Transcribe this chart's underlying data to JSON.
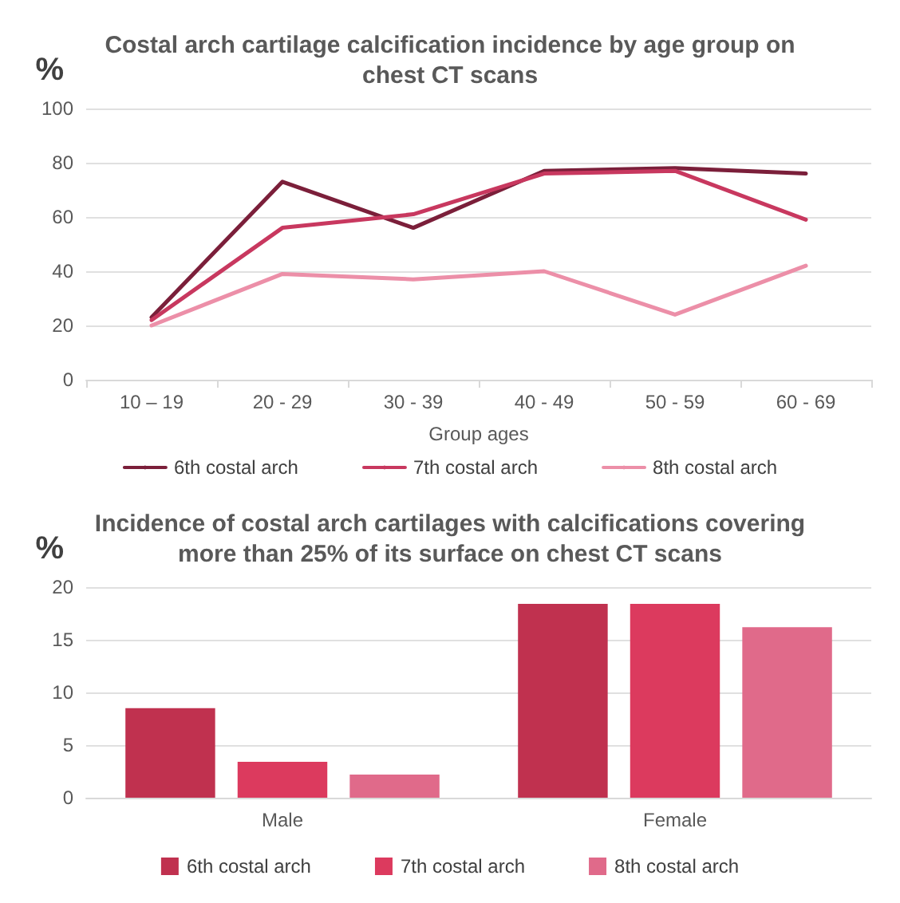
{
  "chart_data": [
    {
      "type": "line",
      "title": "Costal arch cartilage calcification incidence by age group on chest CT scans",
      "xlabel": "Group ages",
      "ylabel": "%",
      "categories": [
        "10 – 19",
        "20 - 29",
        "30 - 39",
        "40 - 49",
        "50 - 59",
        "60 - 69"
      ],
      "series": [
        {
          "name": "6th costal arch",
          "color": "#7b1f3a",
          "values": [
            23,
            73,
            56,
            77,
            78,
            76
          ]
        },
        {
          "name": "7th costal arch",
          "color": "#c8385f",
          "values": [
            22,
            56,
            61,
            76,
            77,
            59
          ]
        },
        {
          "name": "8th costal arch",
          "color": "#ec8fa8",
          "values": [
            20,
            39,
            37,
            40,
            24,
            42
          ]
        }
      ],
      "ylim": [
        0,
        100
      ],
      "yticks": [
        0,
        20,
        40,
        60,
        80,
        100
      ],
      "grid": "y",
      "legend": "bottom",
      "marker": "none",
      "line_style": "solid"
    },
    {
      "type": "bar",
      "title": "Incidence of costal arch cartilages with calcifications covering more than 25% of its surface on chest CT scans",
      "ylabel": "%",
      "categories": [
        "Male",
        "Female"
      ],
      "series": [
        {
          "name": "6th costal arch",
          "color": "#c0314f",
          "values": [
            8.5,
            18.4
          ]
        },
        {
          "name": "7th costal arch",
          "color": "#dc3a5e",
          "values": [
            3.4,
            18.4
          ]
        },
        {
          "name": "8th costal arch",
          "color": "#e06a8a",
          "values": [
            2.2,
            16.2
          ]
        }
      ],
      "ylim": [
        0,
        20
      ],
      "yticks": [
        0,
        5,
        10,
        15,
        20
      ],
      "grid": "y",
      "legend": "bottom"
    }
  ]
}
